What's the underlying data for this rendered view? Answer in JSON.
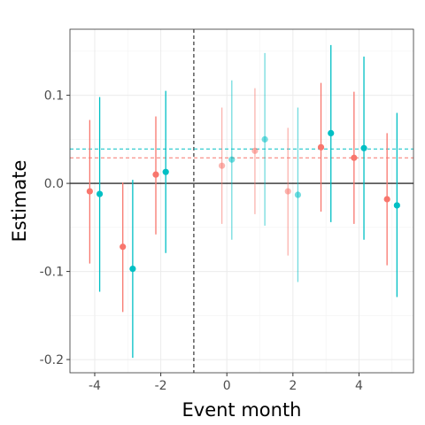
{
  "chart_data": {
    "type": "scatter",
    "xlabel": "Event month",
    "ylabel": "Estimate",
    "xlim": [
      -4.75,
      5.65
    ],
    "ylim": [
      -0.215,
      0.175
    ],
    "x_ticks": [
      -4,
      -2,
      0,
      2,
      4
    ],
    "x_tick_labels": [
      "-4",
      "-2",
      "0",
      "2",
      "4"
    ],
    "y_ticks": [
      -0.2,
      -0.1,
      0.0,
      0.1
    ],
    "y_tick_labels": [
      "-0.2",
      "-0.1",
      "0.0",
      "0.1"
    ],
    "grid": true,
    "legend": "none",
    "reference_lines": {
      "zero_line_y": 0.0,
      "event_line_x": -1
    },
    "series": [
      {
        "color": "#F8766D",
        "mean_line": 0.029,
        "points": [
          {
            "x": -4.15,
            "y": -0.009,
            "low": -0.091,
            "high": 0.072,
            "faded": false
          },
          {
            "x": -3.15,
            "y": -0.072,
            "low": -0.146,
            "high": 0.001,
            "faded": false
          },
          {
            "x": -2.15,
            "y": 0.01,
            "low": -0.058,
            "high": 0.076,
            "faded": false
          },
          {
            "x": -0.15,
            "y": 0.02,
            "low": -0.046,
            "high": 0.086,
            "faded": true
          },
          {
            "x": 0.85,
            "y": 0.037,
            "low": -0.035,
            "high": 0.108,
            "faded": true
          },
          {
            "x": 1.85,
            "y": -0.009,
            "low": -0.082,
            "high": 0.063,
            "faded": true
          },
          {
            "x": 2.85,
            "y": 0.041,
            "low": -0.032,
            "high": 0.114,
            "faded": false
          },
          {
            "x": 3.85,
            "y": 0.029,
            "low": -0.046,
            "high": 0.104,
            "faded": false
          },
          {
            "x": 4.85,
            "y": -0.018,
            "low": -0.093,
            "high": 0.057,
            "faded": false
          }
        ]
      },
      {
        "color": "#00BFC4",
        "mean_line": 0.039,
        "points": [
          {
            "x": -3.85,
            "y": -0.012,
            "low": -0.123,
            "high": 0.098,
            "faded": false
          },
          {
            "x": -2.85,
            "y": -0.097,
            "low": -0.198,
            "high": 0.004,
            "faded": false
          },
          {
            "x": -1.85,
            "y": 0.013,
            "low": -0.079,
            "high": 0.105,
            "faded": false
          },
          {
            "x": 0.15,
            "y": 0.027,
            "low": -0.064,
            "high": 0.117,
            "faded": true
          },
          {
            "x": 1.15,
            "y": 0.05,
            "low": -0.048,
            "high": 0.148,
            "faded": true
          },
          {
            "x": 2.15,
            "y": -0.013,
            "low": -0.112,
            "high": 0.086,
            "faded": true
          },
          {
            "x": 3.15,
            "y": 0.057,
            "low": -0.044,
            "high": 0.157,
            "faded": false
          },
          {
            "x": 4.15,
            "y": 0.04,
            "low": -0.064,
            "high": 0.144,
            "faded": false
          },
          {
            "x": 5.15,
            "y": -0.025,
            "low": -0.129,
            "high": 0.08,
            "faded": false
          }
        ]
      }
    ]
  }
}
